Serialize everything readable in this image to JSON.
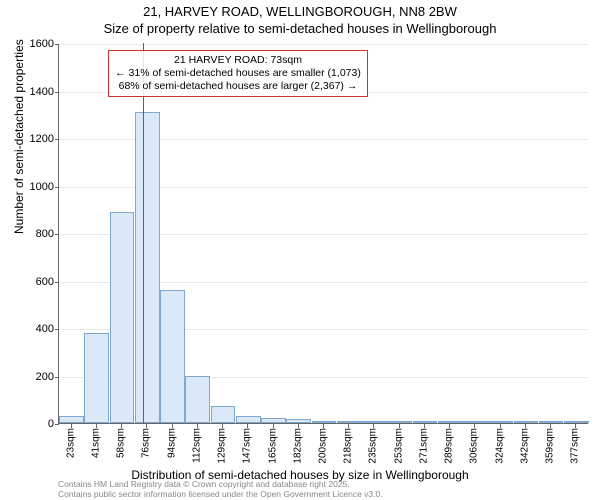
{
  "header": {
    "address": "21, HARVEY ROAD, WELLINGBOROUGH, NN8 2BW",
    "subtitle": "Size of property relative to semi-detached houses in Wellingborough"
  },
  "axes": {
    "y_title": "Number of semi-detached properties",
    "x_title": "Distribution of semi-detached houses by size in Wellingborough",
    "ylim": [
      0,
      1600
    ],
    "ytick_step": 200,
    "yticks": [
      0,
      200,
      400,
      600,
      800,
      1000,
      1200,
      1400,
      1600
    ],
    "grid_color": "#e6e6e6",
    "axis_color": "#666666"
  },
  "chart": {
    "type": "histogram",
    "bar_fill": "#dbe8f7",
    "bar_stroke": "#7fa8cf",
    "background": "#ffffff",
    "marker_color": "#d23232",
    "marker_x_label": "73sqm",
    "x_labels": [
      "23sqm",
      "41sqm",
      "58sqm",
      "76sqm",
      "94sqm",
      "112sqm",
      "129sqm",
      "147sqm",
      "165sqm",
      "182sqm",
      "200sqm",
      "218sqm",
      "235sqm",
      "253sqm",
      "271sqm",
      "289sqm",
      "306sqm",
      "324sqm",
      "342sqm",
      "359sqm",
      "377sqm"
    ],
    "values": [
      30,
      380,
      890,
      1310,
      560,
      200,
      70,
      30,
      20,
      15,
      10,
      8,
      6,
      5,
      4,
      3,
      3,
      2,
      2,
      2,
      2
    ]
  },
  "annotation": {
    "line1": "21 HARVEY ROAD: 73sqm",
    "line2": "← 31% of semi-detached houses are smaller (1,073)",
    "line3": "68% of semi-detached houses are larger (2,367) →"
  },
  "footer": {
    "line1": "Contains HM Land Registry data © Crown copyright and database right 2025.",
    "line2": "Contains public sector information licensed under the Open Government Licence v3.0."
  },
  "style": {
    "title_fontsize": 13,
    "tick_fontsize": 11,
    "xtick_fontsize": 10,
    "axis_title_fontsize": 12,
    "annot_fontsize": 10.5,
    "footer_fontsize": 8.5,
    "footer_color": "#888888"
  }
}
